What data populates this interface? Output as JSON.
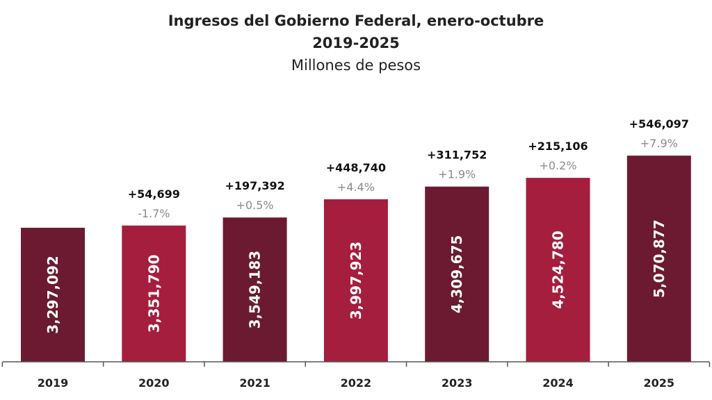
{
  "chart_data": {
    "type": "bar",
    "title": "Ingresos del Gobierno Federal, enero-octubre",
    "subtitle": "2019-2025",
    "unit_label": "Millones de pesos",
    "categories": [
      "2019",
      "2020",
      "2021",
      "2022",
      "2023",
      "2024",
      "2025"
    ],
    "values": [
      3297092,
      3351790,
      3549183,
      3997923,
      4309675,
      4524780,
      5070877
    ],
    "value_labels": [
      "3,297,092",
      "3,351,790",
      "3,549,183",
      "3,997,923",
      "4,309,675",
      "4,524,780",
      "5,070,877"
    ],
    "change_labels": [
      "",
      "+54,699",
      "+197,392",
      "+448,740",
      "+311,752",
      "+215,106",
      "+546,097"
    ],
    "pct_labels": [
      "",
      "-1.7%",
      "+0.5%",
      "+4.4%",
      "+1.9%",
      "+0.2%",
      "+7.9%"
    ],
    "ylim": [
      0,
      5500000
    ],
    "grid": false,
    "colors": [
      "#6b1a32",
      "#a51e3e",
      "#6b1a32",
      "#a51e3e",
      "#6b1a32",
      "#a51e3e",
      "#6b1a32"
    ]
  }
}
